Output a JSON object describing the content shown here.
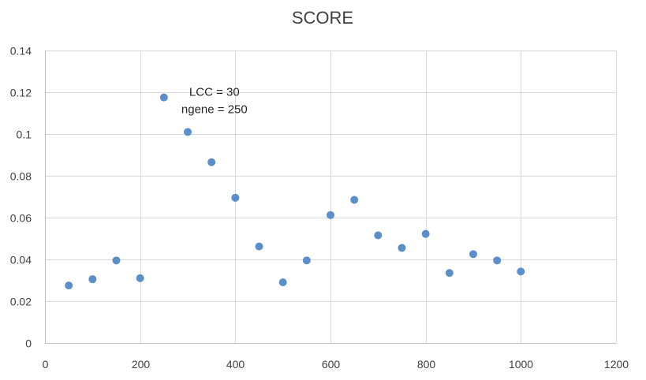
{
  "chart_data": {
    "type": "scatter",
    "title": "SCORE",
    "xlabel": "",
    "ylabel": "",
    "xlim": [
      0,
      1200
    ],
    "ylim": [
      0,
      0.14
    ],
    "x_ticks": [
      0,
      200,
      400,
      600,
      800,
      1000,
      1200
    ],
    "y_ticks": [
      0,
      0.02,
      0.04,
      0.06,
      0.08,
      0.1,
      0.12,
      0.14
    ],
    "x_tick_labels": [
      "0",
      "200",
      "400",
      "600",
      "800",
      "1000",
      "1200"
    ],
    "y_tick_labels": [
      "0",
      "0.02",
      "0.04",
      "0.06",
      "0.08",
      "0.1",
      "0.12",
      "0.14"
    ],
    "grid": true,
    "legend": "none",
    "marker_color": "#5b8fc9",
    "series": [
      {
        "points": [
          [
            50,
            0.0275
          ],
          [
            100,
            0.0305
          ],
          [
            150,
            0.0395
          ],
          [
            200,
            0.031
          ],
          [
            250,
            0.1175
          ],
          [
            300,
            0.101
          ],
          [
            350,
            0.0865
          ],
          [
            400,
            0.0695
          ],
          [
            450,
            0.0462
          ],
          [
            500,
            0.029
          ],
          [
            550,
            0.0395
          ],
          [
            600,
            0.0612
          ],
          [
            650,
            0.0685
          ],
          [
            700,
            0.0515
          ],
          [
            750,
            0.0455
          ],
          [
            800,
            0.0522
          ],
          [
            850,
            0.0335
          ],
          [
            900,
            0.0425
          ],
          [
            950,
            0.0395
          ],
          [
            1000,
            0.0342
          ]
        ]
      }
    ],
    "annotations": [
      {
        "lines": [
          "LCC = 30",
          "ngene = 250"
        ],
        "x": 250,
        "y": 0.1175
      }
    ]
  }
}
